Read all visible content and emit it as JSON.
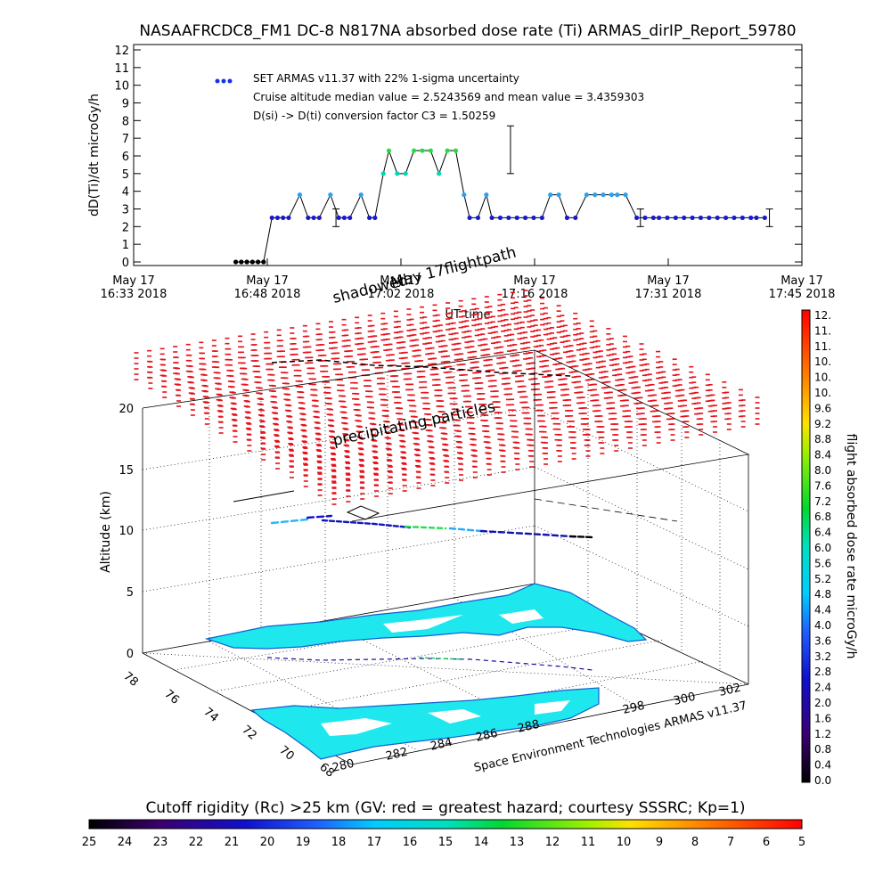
{
  "page": {
    "title": "NASAAFRCDC8_FM1 DC-8   N817NA absorbed dose rate (Ti) ARMAS_dirIP_Report_59780"
  },
  "chart_data": [
    {
      "type": "scatter",
      "title": "NASAAFRCDC8_FM1 DC-8   N817NA absorbed dose rate (Ti) ARMAS_dirIP_Report_59780",
      "xlabel": "UT time",
      "ylabel": "dD(Ti)/dt microGy/h",
      "ylim": [
        0,
        12
      ],
      "yticks": [
        "0",
        "1",
        "2",
        "3",
        "4",
        "5",
        "6",
        "7",
        "8",
        "9",
        "10",
        "11",
        "12"
      ],
      "xlim_min": [
        0,
        72
      ],
      "xticks": [
        {
          "min": 0,
          "line1": "May 17",
          "line2": "16:33 2018"
        },
        {
          "min": 14.4,
          "line1": "May 17",
          "line2": "16:48 2018"
        },
        {
          "min": 28.8,
          "line1": "May 17",
          "line2": "17:02 2018"
        },
        {
          "min": 43.2,
          "line1": "May 17",
          "line2": "17:16 2018"
        },
        {
          "min": 57.6,
          "line1": "May 17",
          "line2": "17:31 2018"
        },
        {
          "min": 72,
          "line1": "May 17",
          "line2": "17:45 2018"
        }
      ],
      "legend": [
        "SET ARMAS v11.37 with 22% 1-sigma uncertainty",
        "Cruise altitude median value = 2.5243569 and mean value = 3.4359303",
        "D(si) -> D(ti) conversion factor C3 = 1.50259"
      ],
      "grid": false,
      "series": [
        {
          "x": [
            11.0,
            11.6,
            12.2,
            12.8,
            13.4,
            14.0,
            14.9,
            15.5,
            16.1,
            16.7,
            17.9,
            18.8,
            19.4,
            20.0,
            21.2,
            22.1,
            22.7,
            23.3,
            24.5,
            25.4,
            26.0,
            26.9,
            27.5,
            28.4,
            29.3,
            30.2,
            31.1,
            32.0,
            32.9,
            33.8,
            34.7,
            35.6,
            36.2,
            37.1,
            38.0,
            38.6,
            39.5,
            40.4,
            41.3,
            42.2,
            43.1,
            44.0,
            44.9,
            45.8,
            46.7,
            47.6,
            48.8,
            49.7,
            50.6,
            51.5,
            52.1,
            53.0,
            54.2,
            55.1,
            56.0,
            56.6,
            57.5,
            58.4,
            59.3,
            60.2,
            61.1,
            62.0,
            62.9,
            63.8,
            64.7,
            65.6,
            66.5,
            67.1,
            68.0
          ],
          "y": [
            0,
            0,
            0,
            0,
            0,
            0,
            2.5,
            2.5,
            2.5,
            2.5,
            3.8,
            2.5,
            2.5,
            2.5,
            3.8,
            2.5,
            2.5,
            2.5,
            3.8,
            2.5,
            2.5,
            5.0,
            6.3,
            5.0,
            5.0,
            6.3,
            6.3,
            6.3,
            5.0,
            6.3,
            6.3,
            3.8,
            2.5,
            2.5,
            3.8,
            2.5,
            2.5,
            2.5,
            2.5,
            2.5,
            2.5,
            2.5,
            3.8,
            3.8,
            2.5,
            2.5,
            3.8,
            3.8,
            3.8,
            3.8,
            3.8,
            3.8,
            2.5,
            2.5,
            2.5,
            2.5,
            2.5,
            2.5,
            2.5,
            2.5,
            2.5,
            2.5,
            2.5,
            2.5,
            2.5,
            2.5,
            2.5,
            2.5,
            2.5
          ]
        }
      ],
      "error_bars": [
        {
          "x": 21.8,
          "y": 2.5,
          "low": 2.0,
          "high": 3.0
        },
        {
          "x": 40.6,
          "y": 6.3,
          "low": 5.0,
          "high": 7.7
        },
        {
          "x": 54.6,
          "y": 2.5,
          "low": 2.0,
          "high": 3.0
        },
        {
          "x": 68.5,
          "y": 2.5,
          "low": 2.0,
          "high": 3.0
        }
      ]
    },
    {
      "type": "scatter",
      "title": "3D flight path",
      "zlabel": "Altitude (km)",
      "zticks": [
        "0",
        "5",
        "10",
        "15",
        "20"
      ],
      "lat_ticks": [
        "68",
        "70",
        "72",
        "74",
        "76",
        "78"
      ],
      "lon_ticks": [
        "280",
        "282",
        "284",
        "286",
        "288",
        "298",
        "300",
        "302"
      ],
      "annotations": [
        "shadowed",
        "May 17flightpath",
        "precipitating particles"
      ],
      "credit": "Space Environment Technologies ARMAS v11.37"
    },
    {
      "type": "heatmap",
      "title": "flight absorbed dose rate microGy/h",
      "labels": [
        "0.0",
        "0.4",
        "0.8",
        "1.2",
        "1.6",
        "2.0",
        "2.4",
        "2.8",
        "3.2",
        "3.6",
        "4.0",
        "4.4",
        "4.8",
        "5.2",
        "5.6",
        "6.0",
        "6.4",
        "6.8",
        "7.2",
        "7.6",
        "8.0",
        "8.4",
        "8.8",
        "9.2",
        "9.6",
        "10.",
        "10.",
        "10.",
        "11.",
        "11.",
        "12."
      ]
    },
    {
      "type": "heatmap",
      "title": "Cutoff rigidity (Rc) >25 km (GV: red = greatest hazard; courtesy SSSRC; Kp=1)",
      "labels": [
        "25",
        "24",
        "23",
        "22",
        "21",
        "20",
        "19",
        "18",
        "17",
        "16",
        "15",
        "14",
        "13",
        "12",
        "11",
        "10",
        "9",
        "8",
        "7",
        "6",
        "5"
      ]
    }
  ]
}
